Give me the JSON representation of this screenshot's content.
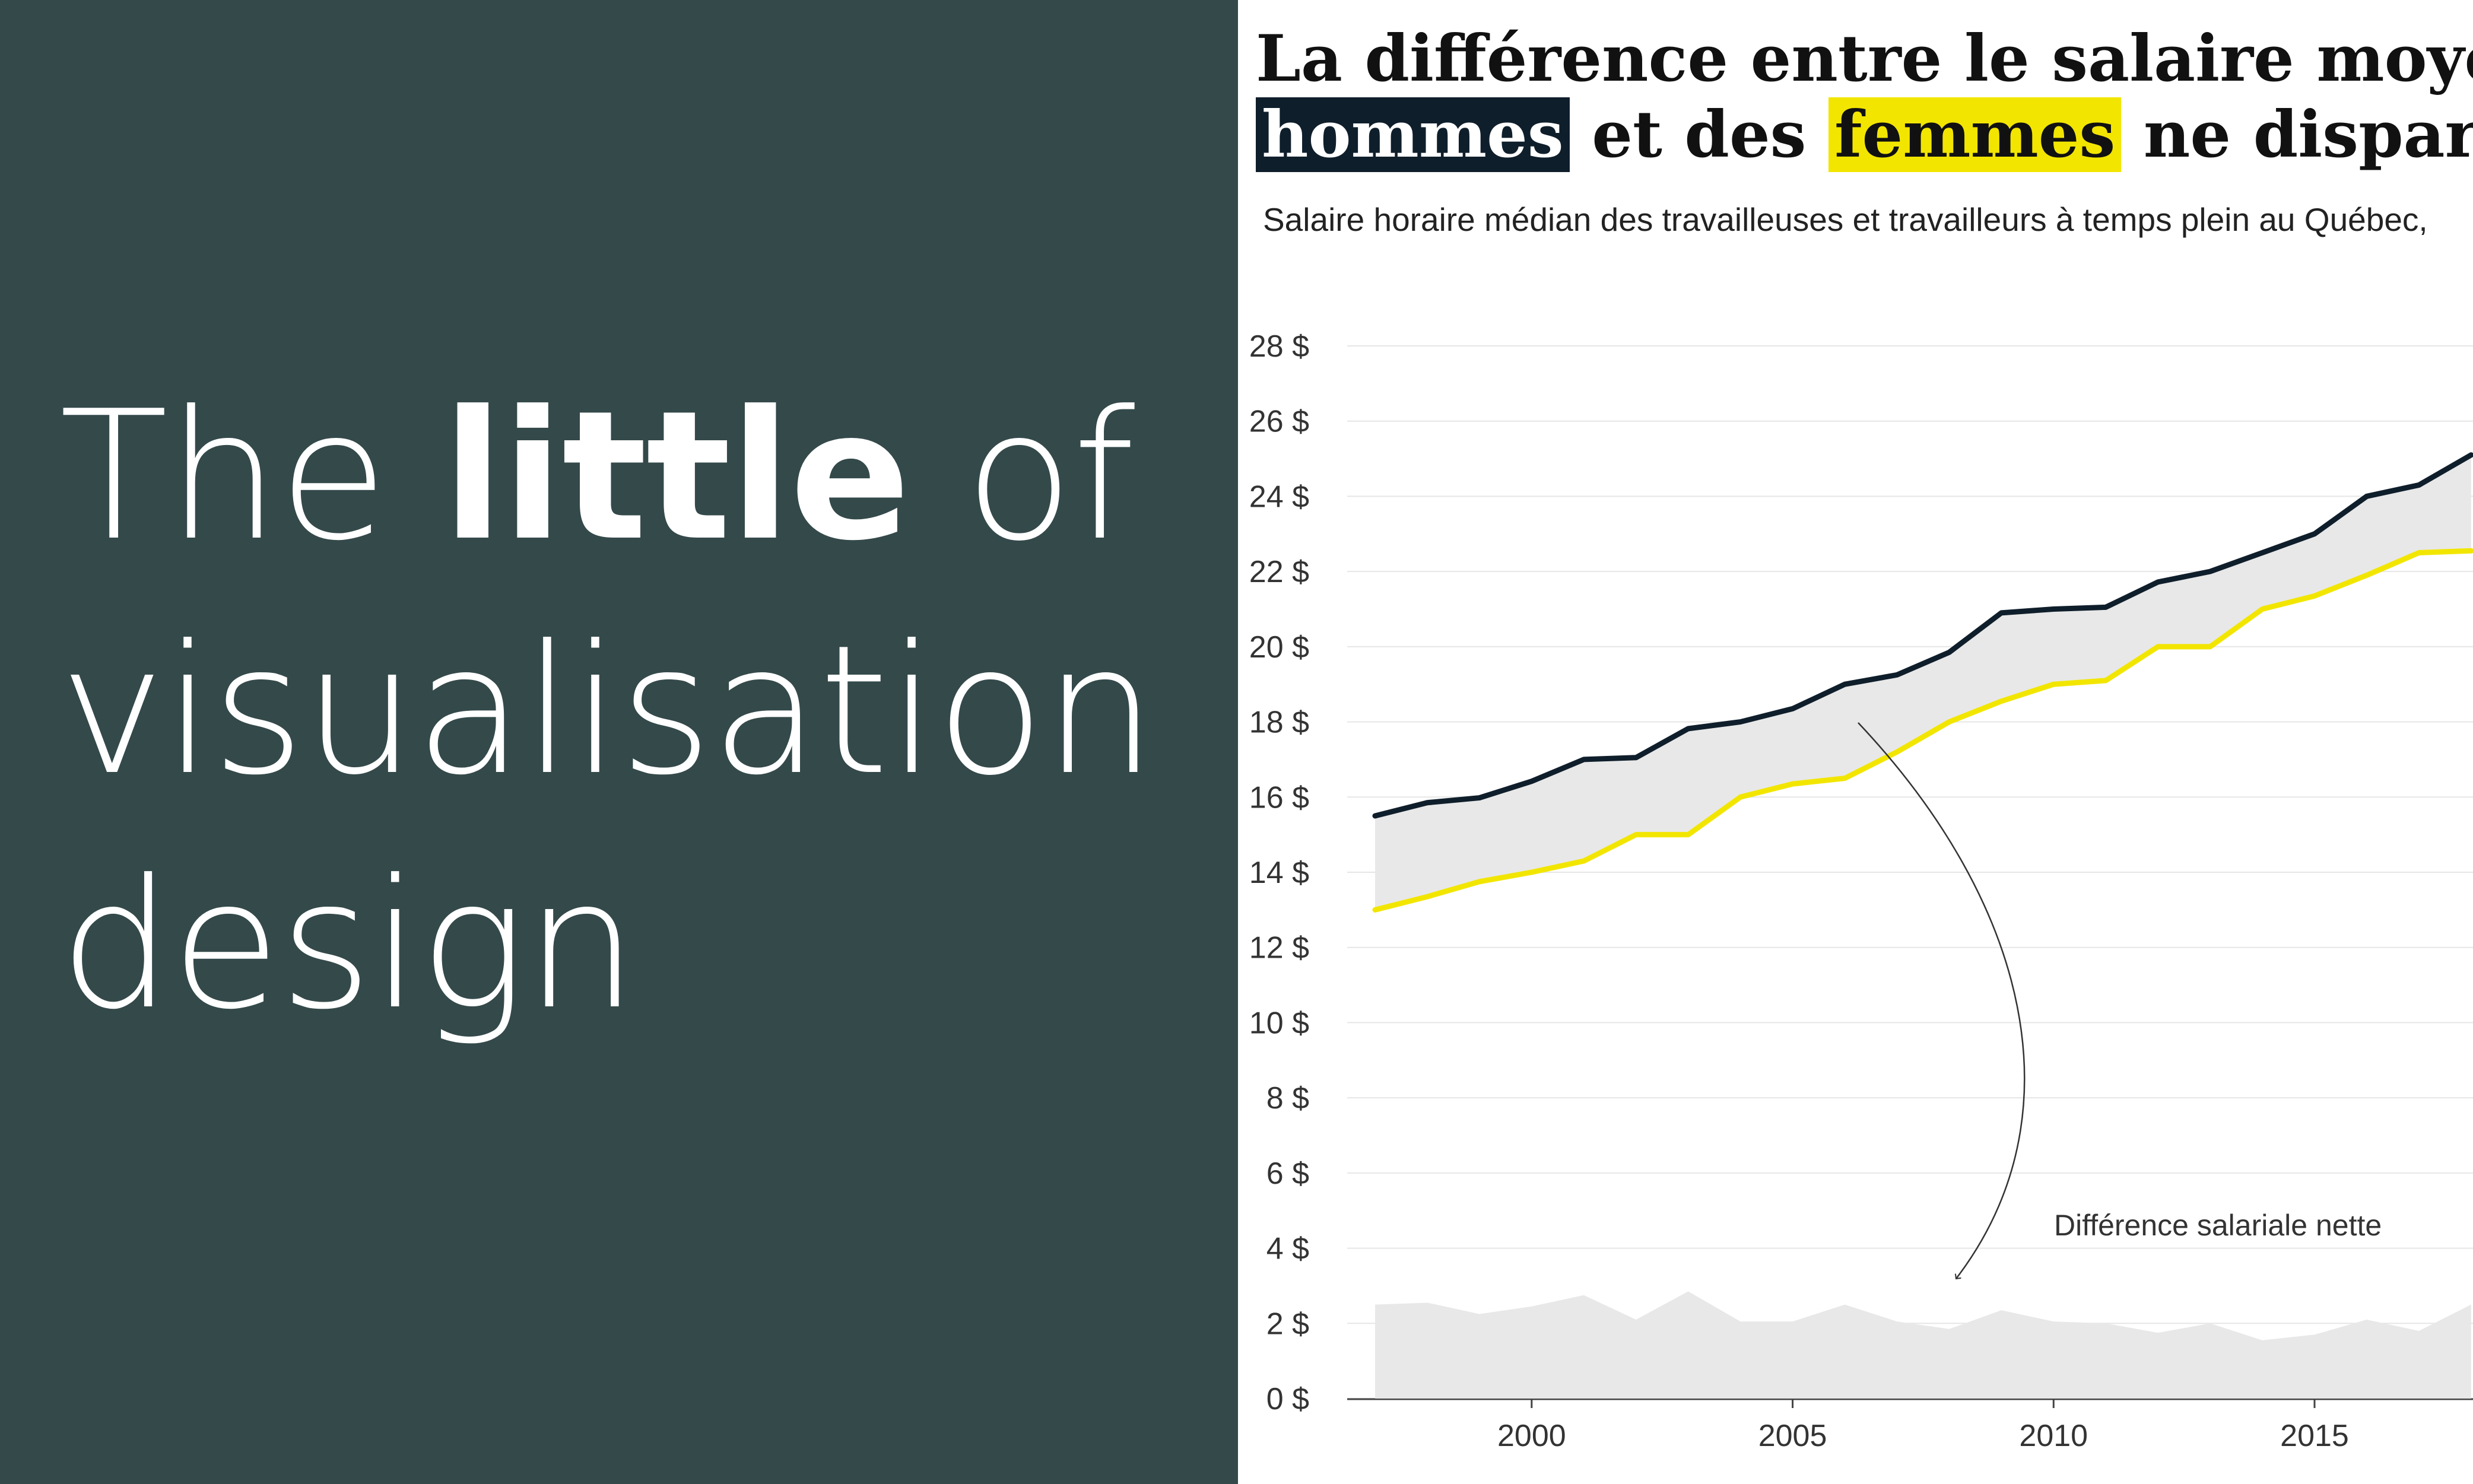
{
  "slide": {
    "headline_pre": "The ",
    "headline_bold": "little",
    "headline_mid": " of",
    "headline_line2": "visualisation",
    "headline_line3": "design"
  },
  "chart": {
    "title_line1": "La différence entre le salaire moyen d",
    "title_hommes": "hommes",
    "title_mid": " et des ",
    "title_femmes": "femmes",
    "title_end": " ne disparait p",
    "subtitle": "Salaire horaire médian des travailleuses et travailleurs à temps plein au Québec,",
    "annotation": "Différence salariale nette"
  },
  "colors": {
    "panel_background": "#34494a",
    "hommes_line": "#0f1e2b",
    "femmes_line": "#f2e600",
    "gap_fill": "#e8e8e8",
    "grid": "#e6e6e6"
  },
  "chart_data": {
    "type": "line",
    "x": [
      1997,
      1998,
      1999,
      2000,
      2001,
      2002,
      2003,
      2004,
      2005,
      2006,
      2007,
      2008,
      2009,
      2010,
      2011,
      2012,
      2013,
      2014,
      2015,
      2016,
      2017,
      2018
    ],
    "series": [
      {
        "name": "hommes",
        "color": "#0f1e2b",
        "values": [
          15.5,
          15.85,
          15.98,
          16.42,
          17.0,
          17.05,
          17.82,
          18.0,
          18.35,
          19.0,
          19.25,
          19.85,
          20.9,
          21.0,
          21.05,
          21.72,
          22.0,
          22.5,
          23.0,
          24.0,
          24.3,
          25.1
        ]
      },
      {
        "name": "femmes",
        "color": "#f2e600",
        "values": [
          13.0,
          13.35,
          13.75,
          14.0,
          14.3,
          15.0,
          15.0,
          16.0,
          16.35,
          16.5,
          17.2,
          18.0,
          18.55,
          19.0,
          19.1,
          20.0,
          20.0,
          21.0,
          21.35,
          21.9,
          22.5,
          22.55
        ]
      }
    ],
    "difference": {
      "name": "Différence salariale nette",
      "values": [
        2.5,
        2.55,
        2.25,
        2.45,
        2.75,
        2.1,
        2.85,
        2.05,
        2.05,
        2.5,
        2.05,
        1.85,
        2.35,
        2.05,
        2.0,
        1.75,
        2.0,
        1.55,
        1.7,
        2.1,
        1.8,
        2.5
      ]
    },
    "y_ticks": [
      "0 $",
      "2 $",
      "4 $",
      "6 $",
      "8 $",
      "10 $",
      "12 $",
      "14 $",
      "16 $",
      "18 $",
      "20 $",
      "22 $",
      "24 $",
      "26 $",
      "28 $"
    ],
    "x_ticks": [
      "2000",
      "2005",
      "2010",
      "2015"
    ],
    "ylim": [
      0,
      28
    ],
    "grid": true
  }
}
